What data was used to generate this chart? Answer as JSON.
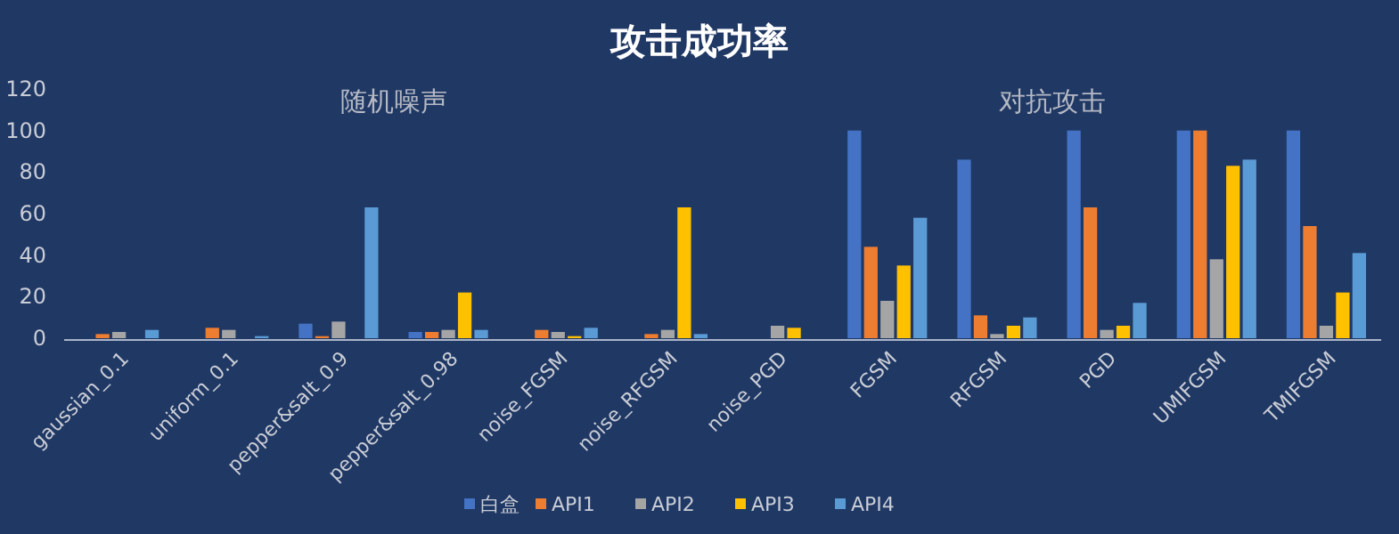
{
  "chart_data": {
    "type": "bar",
    "title": "攻击成功率",
    "categories": [
      "gaussian_0.1",
      "uniform_0.1",
      "pepper&salt_0.9",
      "pepper&salt_0.98",
      "noise_FGSM",
      "noise_RFGSM",
      "noise_PGD",
      "FGSM",
      "RFGSM",
      "PGD",
      "UMIFGSM",
      "TMIFGSM"
    ],
    "series": [
      {
        "name": "白盒",
        "color": "#4472c4",
        "values": [
          0,
          0,
          7,
          3,
          0,
          0,
          0,
          100,
          86,
          100,
          100,
          100
        ]
      },
      {
        "name": "API1",
        "color": "#ed7d31",
        "values": [
          2,
          5,
          1,
          3,
          4,
          2,
          0,
          44,
          11,
          63,
          100,
          54
        ]
      },
      {
        "name": "API2",
        "color": "#a5a5a5",
        "values": [
          3,
          4,
          8,
          4,
          3,
          4,
          6,
          18,
          2,
          4,
          38,
          6
        ]
      },
      {
        "name": "API3",
        "color": "#ffc000",
        "values": [
          0,
          0,
          0,
          22,
          1,
          63,
          5,
          35,
          6,
          6,
          83,
          22
        ]
      },
      {
        "name": "API4",
        "color": "#5b9bd5",
        "values": [
          4,
          1,
          63,
          4,
          5,
          2,
          0,
          58,
          10,
          17,
          86,
          41
        ]
      }
    ],
    "annotations": [
      "随机噪声",
      "对抗攻击"
    ],
    "ylim": [
      0,
      120
    ],
    "yticks": [
      0,
      20,
      40,
      60,
      80,
      100,
      120
    ],
    "grid": false,
    "legend": "bottom"
  }
}
